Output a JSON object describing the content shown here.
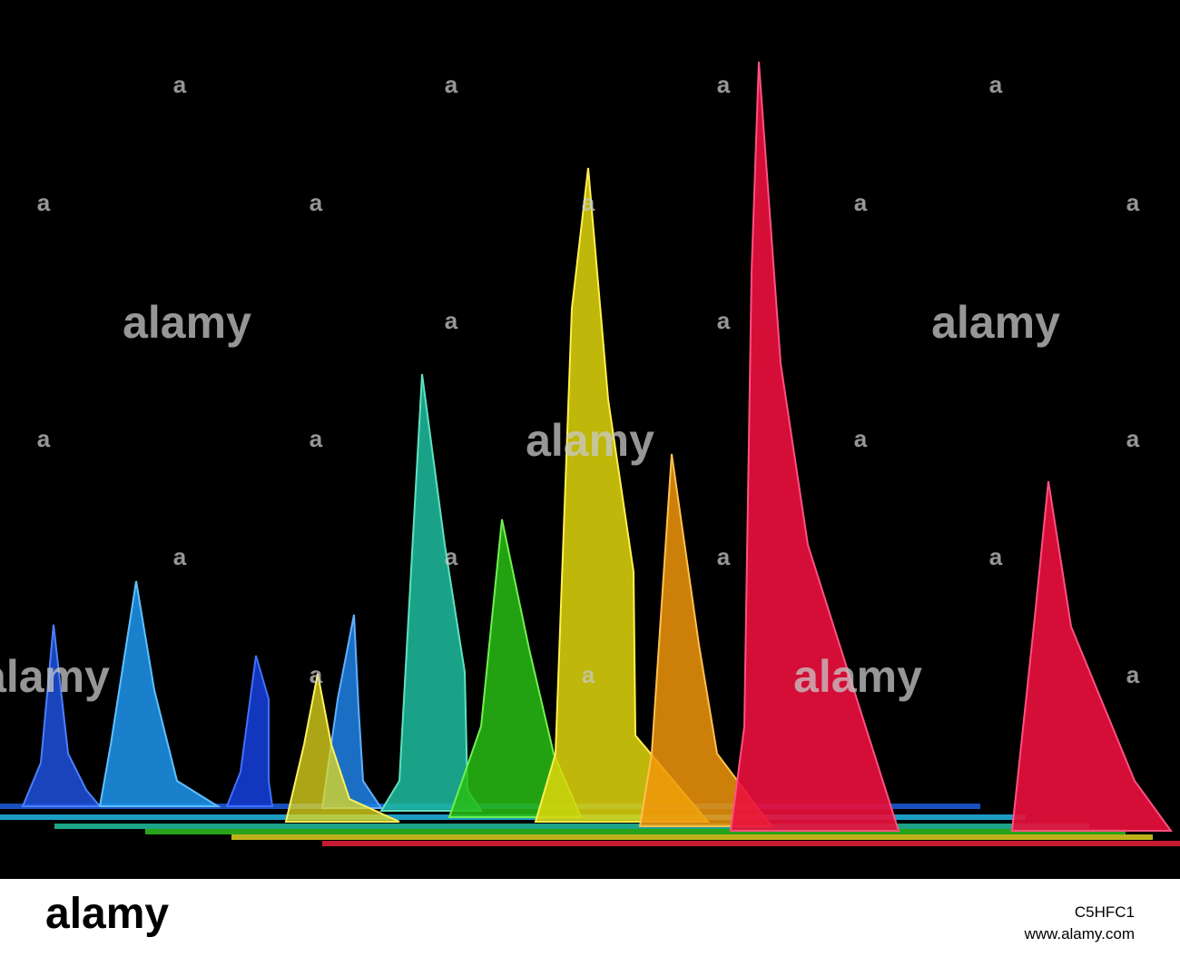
{
  "watermark": {
    "logo": "alamy",
    "mark": "a"
  },
  "footer": {
    "logo": "alamy",
    "image_id": "C5HFC1",
    "url": "www.alamy.com"
  }
}
